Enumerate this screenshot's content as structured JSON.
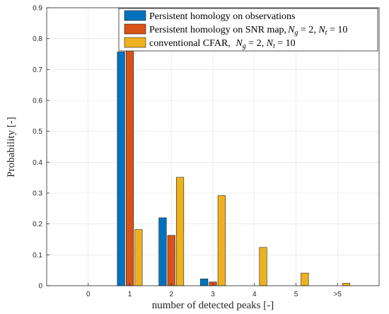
{
  "chart_data": {
    "type": "bar",
    "categories": [
      "0",
      "1",
      "2",
      "3",
      "4",
      "5",
      ">5"
    ],
    "series": [
      {
        "name": "Persistent homology on observations",
        "values": [
          0,
          0.757,
          0.22,
          0.022,
          0,
          0,
          0
        ],
        "color": "#0072BD"
      },
      {
        "name": "Persistent homology on SNR map, Ng = 2, Nt = 10",
        "values": [
          0,
          0.825,
          0.163,
          0.012,
          0,
          0,
          0
        ],
        "color": "#D95319"
      },
      {
        "name": "conventional CFAR, Ng = 2, Nt = 10",
        "values": [
          0,
          0.182,
          0.351,
          0.292,
          0.124,
          0.041,
          0.008
        ],
        "color": "#EDB120"
      }
    ],
    "legend": [
      {
        "text": "Persistent homology on observations",
        "math": ""
      },
      {
        "text": "Persistent homology on SNR map,",
        "math": "Ng = 2, Nt = 10"
      },
      {
        "text": "conventional CFAR, ",
        "math": "Ng = 2, Nt = 10"
      }
    ],
    "xlabel": "number of detected peaks [-]",
    "ylabel": "Probability [-]",
    "ylim": [
      0,
      0.9
    ],
    "yticks": [
      "0",
      "0.1",
      "0.2",
      "0.3",
      "0.4",
      "0.5",
      "0.6",
      "0.7",
      "0.8",
      "0.9"
    ],
    "grid": true,
    "legend_position": "top-right"
  }
}
